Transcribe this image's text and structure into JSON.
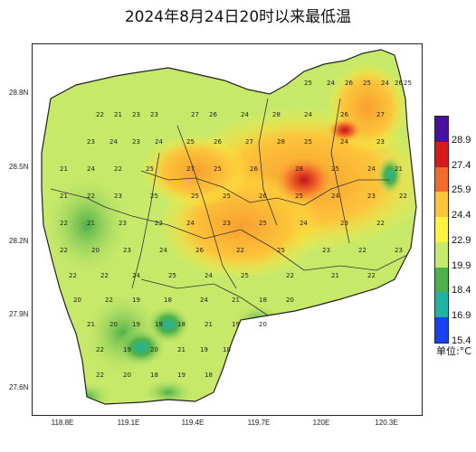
{
  "title": "2024年8月24日20时以来最低温",
  "lat_ticks": [
    "28.8N",
    "28.5N",
    "28.2N",
    "27.9N",
    "27.6N"
  ],
  "lon_ticks": [
    "118.8E",
    "119.1E",
    "119.4E",
    "119.7E",
    "120E",
    "120.3E"
  ],
  "legend": {
    "unit": "单位:°C",
    "levels": [
      "28.9",
      "27.4",
      "25.9",
      "24.4",
      "22.9",
      "19.9",
      "18.4",
      "16.9",
      "15.4"
    ],
    "colors": [
      "#4b0fa0",
      "#d7191c",
      "#f26b2a",
      "#fdc43a",
      "#fef23d",
      "#c7e96a",
      "#4db04a",
      "#1fb3a6",
      "#1640f0"
    ]
  },
  "value_rows": [
    [
      "25",
      "24",
      "26",
      "25",
      "24",
      "26",
      "25"
    ],
    [
      "22",
      "21",
      "23",
      "23",
      "27",
      "26",
      "24",
      "28",
      "24",
      "26",
      "27"
    ],
    [
      "23",
      "24",
      "23",
      "24",
      "25",
      "26",
      "27",
      "28",
      "25",
      "24",
      "23"
    ],
    [
      "21",
      "24",
      "22",
      "25",
      "27",
      "25",
      "26",
      "28",
      "25",
      "24",
      "21"
    ],
    [
      "21",
      "22",
      "23",
      "25",
      "25",
      "25",
      "26",
      "25",
      "24",
      "23",
      "22"
    ],
    [
      "22",
      "21",
      "23",
      "22",
      "24",
      "23",
      "25",
      "24",
      "23",
      "22"
    ],
    [
      "22",
      "20",
      "23",
      "24",
      "26",
      "22",
      "25",
      "23",
      "22",
      "23"
    ],
    [
      "22",
      "22",
      "24",
      "25",
      "24",
      "25",
      "22",
      "21",
      "22"
    ],
    [
      "20",
      "22",
      "19",
      "18",
      "24",
      "21",
      "18",
      "20"
    ],
    [
      "21",
      "20",
      "19",
      "19",
      "18",
      "21",
      "19",
      "20"
    ],
    [
      "22",
      "19",
      "20",
      "21",
      "19",
      "18"
    ],
    [
      "22",
      "20",
      "18",
      "19",
      "18"
    ]
  ]
}
